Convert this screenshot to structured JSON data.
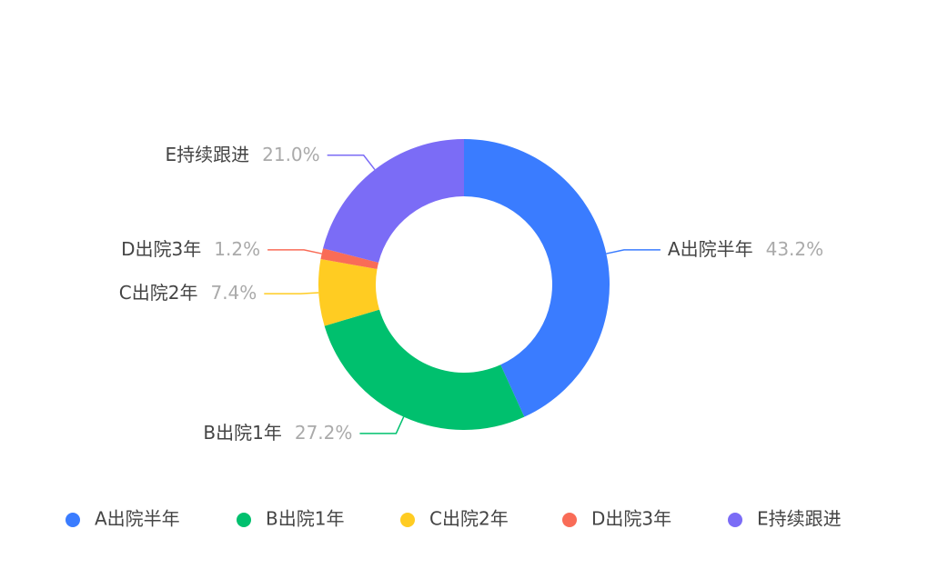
{
  "chart_data": {
    "type": "pie",
    "categories": [
      "A出院半年",
      "B出院1年",
      "C出院2年",
      "D出院3年",
      "E持续跟进"
    ],
    "values": [
      43.2,
      27.2,
      7.4,
      1.2,
      21.0
    ],
    "value_labels": [
      "43.2%",
      "27.2%",
      "7.4%",
      "1.2%",
      "21.0%"
    ],
    "colors": [
      "#3a7cff",
      "#00c06e",
      "#ffcc22",
      "#f96c57",
      "#7b6cf6"
    ],
    "legend": "bottom"
  }
}
